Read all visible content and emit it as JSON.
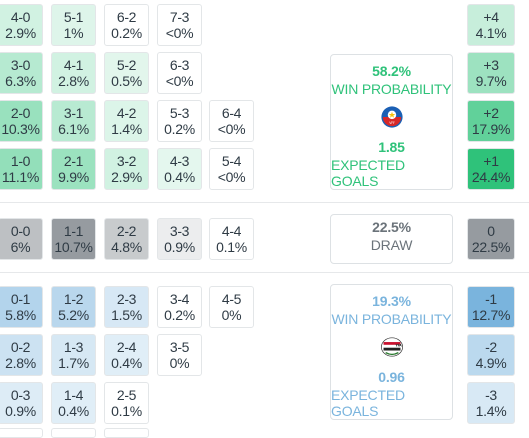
{
  "home_rows": [
    [
      {
        "s": "4-0",
        "p": "2.9%"
      },
      {
        "s": "5-1",
        "p": "1%"
      },
      {
        "s": "6-2",
        "p": "0.2%"
      },
      {
        "s": "7-3",
        "p": "<0%"
      }
    ],
    [
      {
        "s": "3-0",
        "p": "6.3%"
      },
      {
        "s": "4-1",
        "p": "2.8%"
      },
      {
        "s": "5-2",
        "p": "0.5%"
      },
      {
        "s": "6-3",
        "p": "<0%"
      }
    ],
    [
      {
        "s": "2-0",
        "p": "10.3%"
      },
      {
        "s": "3-1",
        "p": "6.1%"
      },
      {
        "s": "4-2",
        "p": "1.4%"
      },
      {
        "s": "5-3",
        "p": "0.2%"
      },
      {
        "s": "6-4",
        "p": "<0%"
      }
    ],
    [
      {
        "s": "1-0",
        "p": "11.1%"
      },
      {
        "s": "2-1",
        "p": "9.9%"
      },
      {
        "s": "3-2",
        "p": "2.9%"
      },
      {
        "s": "4-3",
        "p": "0.4%"
      },
      {
        "s": "5-4",
        "p": "<0%"
      }
    ]
  ],
  "draw_row": [
    {
      "s": "0-0",
      "p": "6%"
    },
    {
      "s": "1-1",
      "p": "10.7%"
    },
    {
      "s": "2-2",
      "p": "4.8%"
    },
    {
      "s": "3-3",
      "p": "0.9%"
    },
    {
      "s": "4-4",
      "p": "0.1%"
    }
  ],
  "away_rows": [
    [
      {
        "s": "0-1",
        "p": "5.8%"
      },
      {
        "s": "1-2",
        "p": "5.2%"
      },
      {
        "s": "2-3",
        "p": "1.5%"
      },
      {
        "s": "3-4",
        "p": "0.2%"
      },
      {
        "s": "4-5",
        "p": "0%"
      }
    ],
    [
      {
        "s": "0-2",
        "p": "2.8%"
      },
      {
        "s": "1-3",
        "p": "1.7%"
      },
      {
        "s": "2-4",
        "p": "0.4%"
      },
      {
        "s": "3-5",
        "p": "0%"
      }
    ],
    [
      {
        "s": "0-3",
        "p": "0.9%"
      },
      {
        "s": "1-4",
        "p": "0.4%"
      },
      {
        "s": "2-5",
        "p": "0.1%"
      }
    ]
  ],
  "margins_home": [
    {
      "m": "+4",
      "p": "4.1%"
    },
    {
      "m": "+3",
      "p": "9.7%"
    },
    {
      "m": "+2",
      "p": "17.9%"
    },
    {
      "m": "+1",
      "p": "24.4%"
    }
  ],
  "margin_draw": {
    "m": "0",
    "p": "22.5%"
  },
  "margins_away": [
    {
      "m": "-1",
      "p": "12.7%"
    },
    {
      "m": "-2",
      "p": "4.9%"
    },
    {
      "m": "-3",
      "p": "1.4%"
    }
  ],
  "home_panel": {
    "win_pct": "58.2%",
    "win_label": "WIN PROBABILITY",
    "xg": "1.85",
    "xg_label": "EXPECTED GOALS",
    "crest_icon": "vff-crest-icon"
  },
  "draw_panel": {
    "pct": "22.5%",
    "label": "DRAW"
  },
  "away_panel": {
    "win_pct": "19.3%",
    "win_label": "WIN PROBABILITY",
    "xg": "0.96",
    "xg_label": "EXPECTED GOALS",
    "crest_icon": "yfa-crest-icon"
  },
  "colors": {
    "green": "#2fc27a",
    "blue": "#7ab4dd",
    "grey": "#b5b9bd"
  }
}
